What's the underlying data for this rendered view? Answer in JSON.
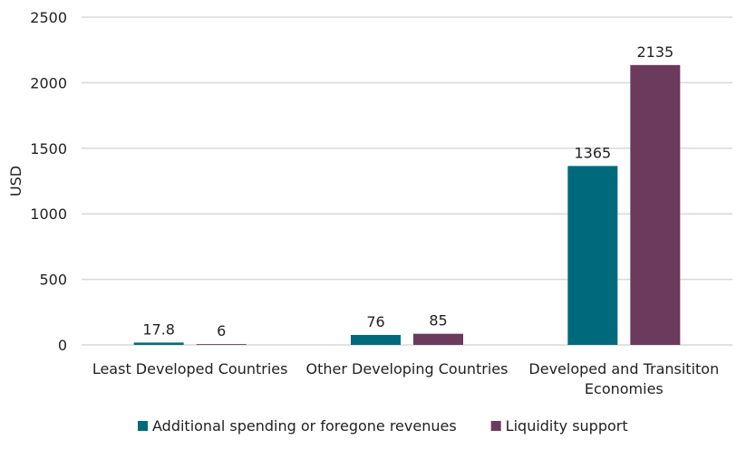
{
  "chart_data": {
    "type": "bar",
    "title": "",
    "xlabel": "",
    "ylabel": "USD",
    "ylim": [
      0,
      2500
    ],
    "yticks": [
      0,
      500,
      1000,
      1500,
      2000,
      2500
    ],
    "grid": true,
    "legend_position": "bottom",
    "categories": [
      [
        "Least Developed Countries"
      ],
      [
        "Other Developing Countries"
      ],
      [
        "Developed and Transititon",
        "Economies"
      ]
    ],
    "series": [
      {
        "name": "Additional spending or foregone revenues",
        "color": "#006a7d",
        "values": [
          17.8,
          76,
          1365
        ],
        "labels": [
          "17.8",
          "76",
          "1365"
        ]
      },
      {
        "name": "Liquidity support",
        "color": "#6b3a5c",
        "values": [
          6,
          85,
          2135
        ],
        "labels": [
          "6",
          "85",
          "2135"
        ]
      }
    ]
  }
}
